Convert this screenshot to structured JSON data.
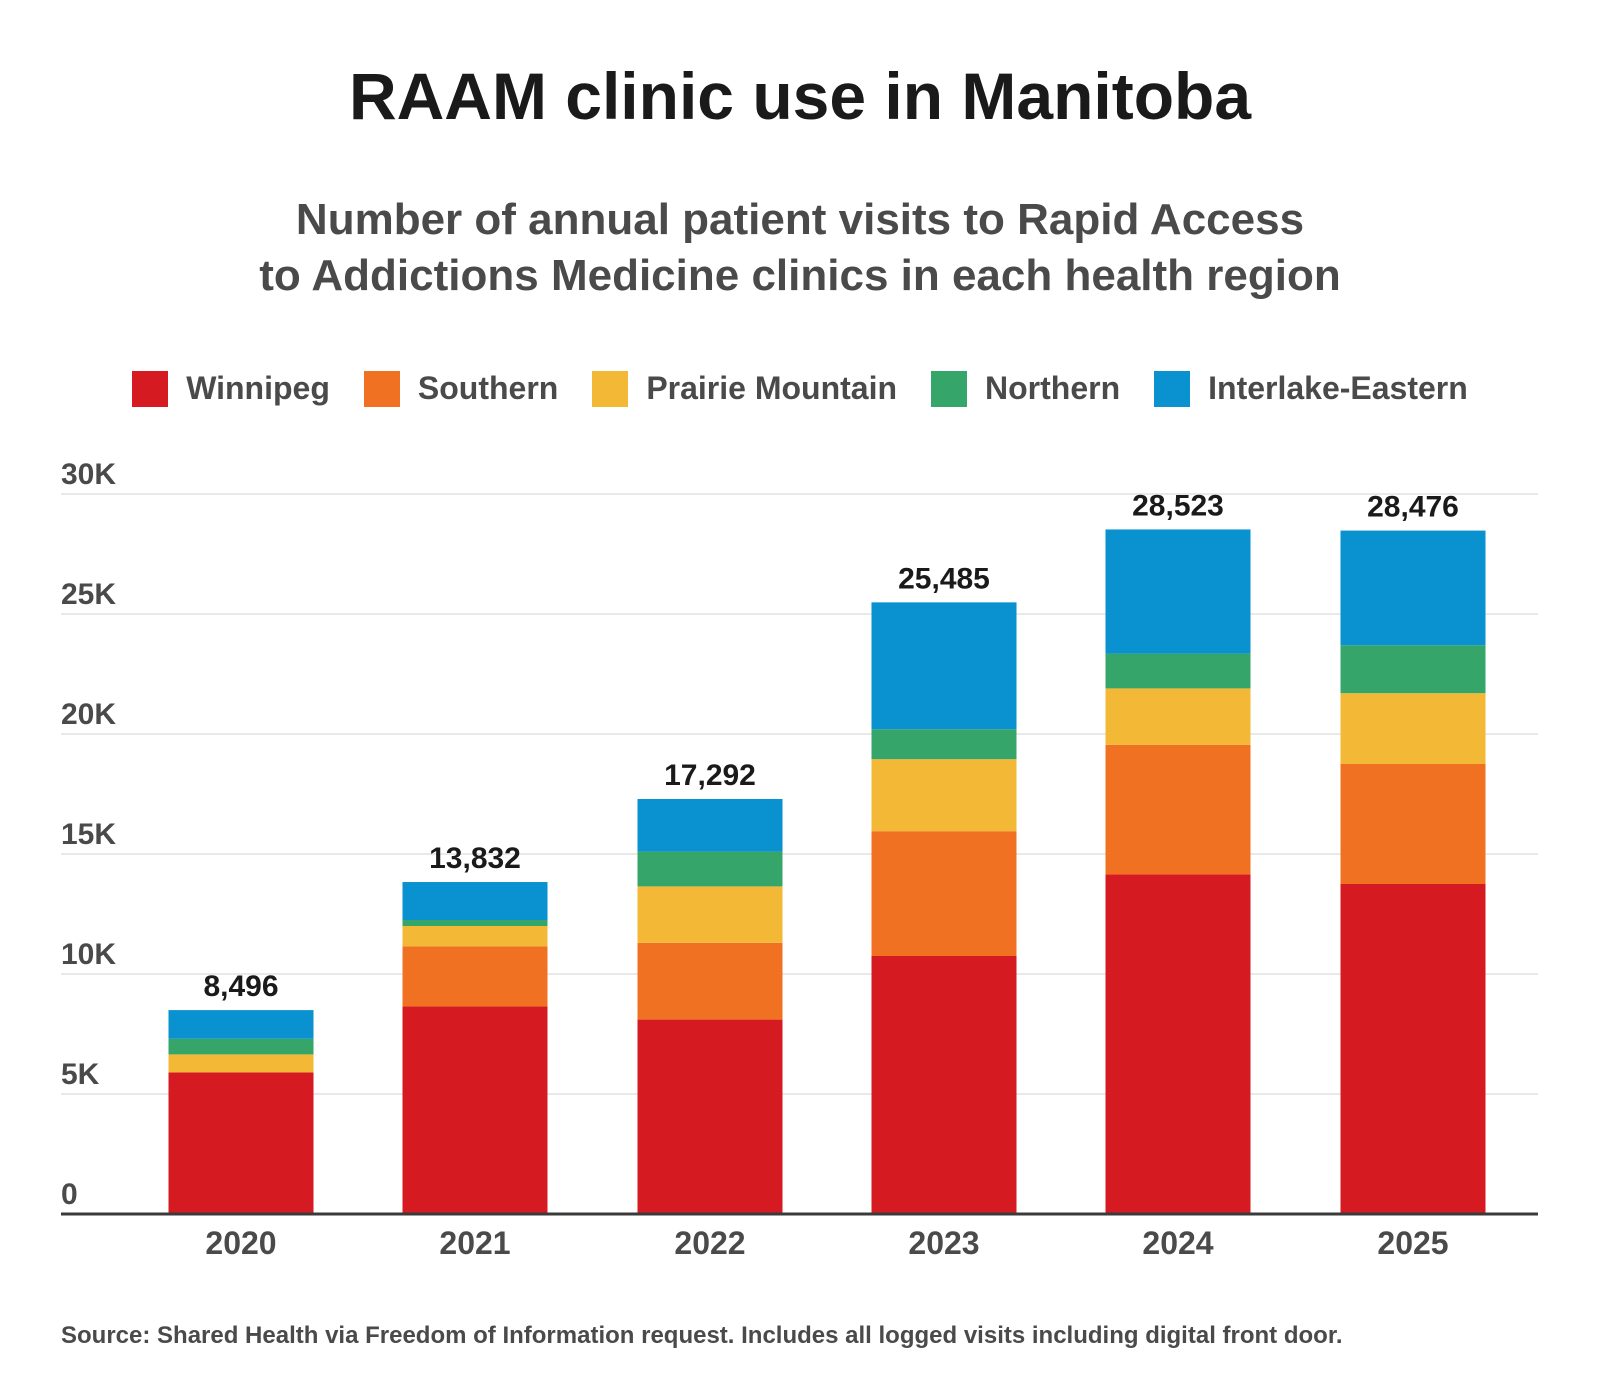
{
  "title": "RAAM clinic use in Manitoba",
  "subtitle_lines": [
    "Number of annual patient visits to Rapid Access",
    "to Addictions Medicine clinics in each health region"
  ],
  "source": "Source: Shared Health via Freedom of Information request. Includes all logged visits including digital front door.",
  "legend": [
    {
      "label": "Winnipeg",
      "color": "#d51b21"
    },
    {
      "label": "Southern",
      "color": "#f07122"
    },
    {
      "label": "Prairie Mountain",
      "color": "#f3b936"
    },
    {
      "label": "Northern",
      "color": "#36a56a"
    },
    {
      "label": "Interlake-Eastern",
      "color": "#0a91cf"
    }
  ],
  "chart_data": {
    "type": "bar",
    "stacked": true,
    "categories": [
      "2020",
      "2021",
      "2022",
      "2023",
      "2024",
      "2025"
    ],
    "series": [
      {
        "name": "Winnipeg",
        "color": "#d51b21",
        "values": [
          5900,
          8650,
          8100,
          10750,
          14150,
          13750
        ]
      },
      {
        "name": "Southern",
        "color": "#f07122",
        "values": [
          0,
          2500,
          3200,
          5200,
          5400,
          5000
        ]
      },
      {
        "name": "Prairie Mountain",
        "color": "#f3b936",
        "values": [
          750,
          850,
          2350,
          3000,
          2350,
          2950
        ]
      },
      {
        "name": "Northern",
        "color": "#36a56a",
        "values": [
          650,
          250,
          1450,
          1250,
          1450,
          2000
        ]
      },
      {
        "name": "Interlake-Eastern",
        "color": "#0a91cf",
        "values": [
          1196,
          1582,
          2192,
          5285,
          5173,
          4776
        ]
      }
    ],
    "totals": [
      8496,
      13832,
      17292,
      25485,
      28523,
      28476
    ],
    "total_labels": [
      "8,496",
      "13,832",
      "17,292",
      "25,485",
      "28,523",
      "28,476"
    ],
    "y_ticks": [
      0,
      5000,
      10000,
      15000,
      20000,
      25000,
      30000
    ],
    "y_tick_labels": [
      "0",
      "5K",
      "10K",
      "15K",
      "20K",
      "25K",
      "30K"
    ],
    "ylim": [
      0,
      30000
    ],
    "grid": true,
    "legend_position": "top"
  }
}
